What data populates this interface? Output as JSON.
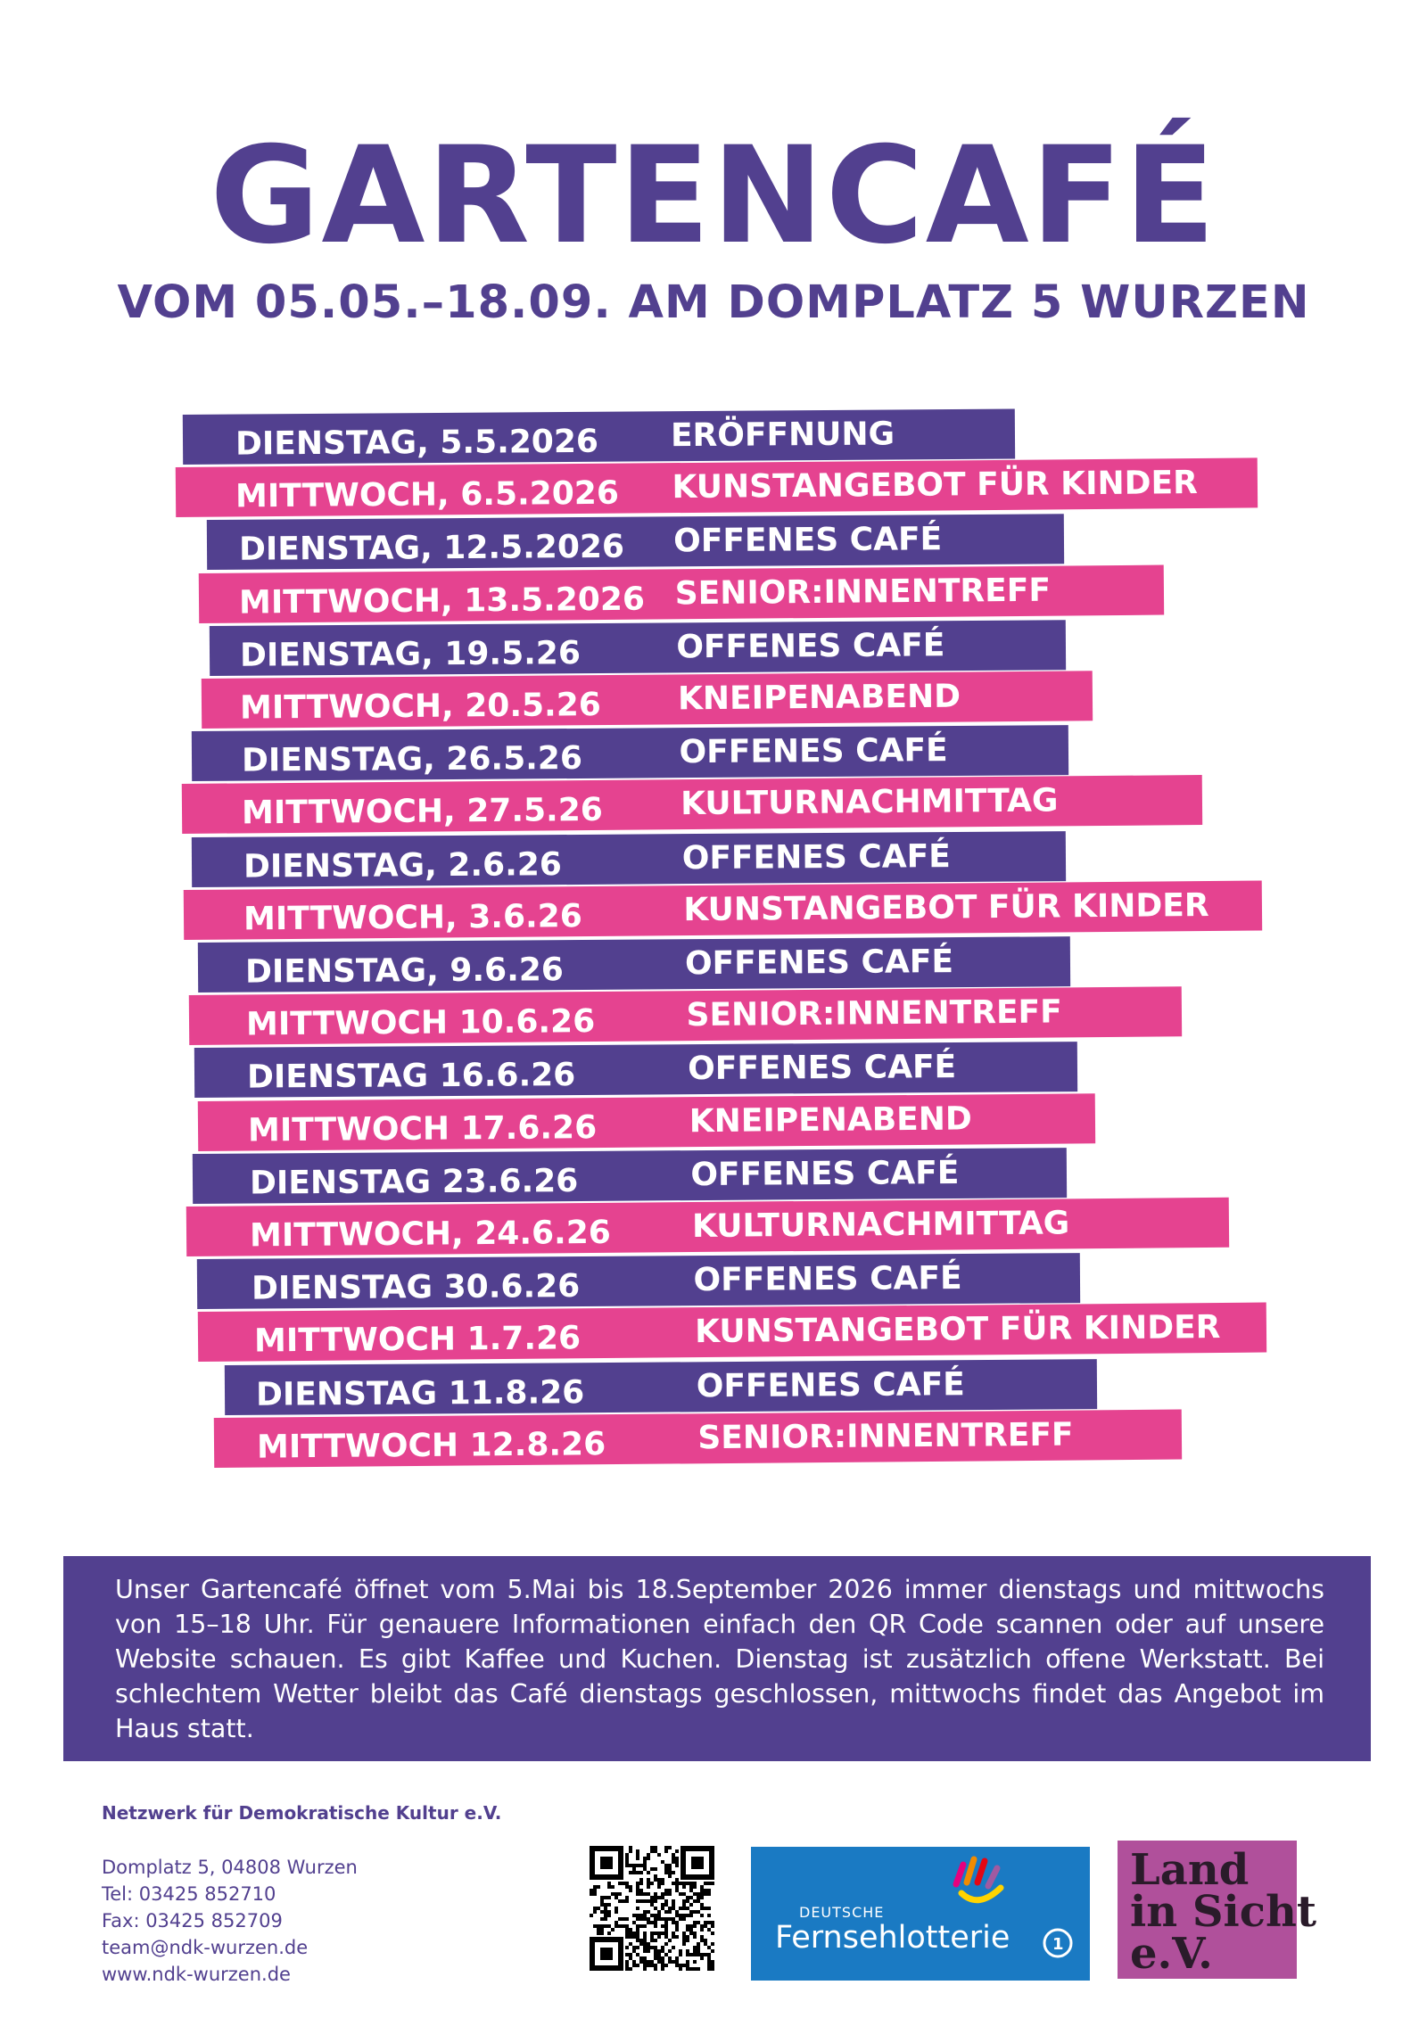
{
  "header": {
    "title": "GARTENCAFÉ",
    "subtitle": "VOM 05.05.–18.09. AM DOMPLATZ 5 WURZEN"
  },
  "schedule": [
    {
      "date": "DIENSTAG, 5.5.2026",
      "event": "ERÖFFNUNG",
      "color": "#52408f"
    },
    {
      "date": "MITTWOCH, 6.5.2026",
      "event": "KUNSTANGEBOT FÜR KINDER",
      "color": "#e54390"
    },
    {
      "date": "DIENSTAG, 12.5.2026",
      "event": "OFFENES CAFÉ",
      "color": "#52408f"
    },
    {
      "date": "MITTWOCH, 13.5.2026",
      "event": "SENIOR:INNENTREFF",
      "color": "#e54390"
    },
    {
      "date": "DIENSTAG, 19.5.26",
      "event": "OFFENES CAFÉ",
      "color": "#52408f"
    },
    {
      "date": "MITTWOCH, 20.5.26",
      "event": "KNEIPENABEND",
      "color": "#e54390"
    },
    {
      "date": "DIENSTAG, 26.5.26",
      "event": "OFFENES CAFÉ",
      "color": "#52408f"
    },
    {
      "date": "MITTWOCH, 27.5.26",
      "event": "KULTURNACHMITTAG",
      "color": "#e54390"
    },
    {
      "date": "DIENSTAG, 2.6.26",
      "event": "OFFENES CAFÉ",
      "color": "#52408f"
    },
    {
      "date": "MITTWOCH, 3.6.26",
      "event": "KUNSTANGEBOT FÜR KINDER",
      "color": "#e54390"
    },
    {
      "date": "DIENSTAG, 9.6.26",
      "event": "OFFENES CAFÉ",
      "color": "#52408f"
    },
    {
      "date": "MITTWOCH 10.6.26",
      "event": "SENIOR:INNENTREFF",
      "color": "#e54390"
    },
    {
      "date": "DIENSTAG 16.6.26",
      "event": "OFFENES CAFÉ",
      "color": "#52408f"
    },
    {
      "date": "MITTWOCH 17.6.26",
      "event": "KNEIPENABEND",
      "color": "#e54390"
    },
    {
      "date": "DIENSTAG 23.6.26",
      "event": "OFFENES CAFÉ",
      "color": "#52408f"
    },
    {
      "date": "MITTWOCH, 24.6.26",
      "event": "KULTURNACHMITTAG",
      "color": "#e54390"
    },
    {
      "date": "DIENSTAG 30.6.26",
      "event": "OFFENES CAFÉ",
      "color": "#52408f"
    },
    {
      "date": "MITTWOCH 1.7.26",
      "event": "KUNSTANGEBOT FÜR KINDER",
      "color": "#e54390"
    },
    {
      "date": "DIENSTAG 11.8.26",
      "event": "OFFENES CAFÉ",
      "color": "#52408f"
    },
    {
      "date": "MITTWOCH 12.8.26",
      "event": "SENIOR:INNENTREFF",
      "color": "#e54390"
    }
  ],
  "info": {
    "text": "Unser Gartencafé öffnet vom 5.Mai bis 18.September 2026 immer dienstags und mittwochs von 15–18 Uhr. Für genauere Informationen einfach den QR Code scannen oder auf unsere Website schauen. Es gibt Kaffee und Kuchen. Dienstag ist zusätzlich offene Werkstatt. Bei schlechtem Wetter bleibt das Café dienstags geschlossen, mittwochs findet das Angebot im Haus statt."
  },
  "footer": {
    "org_name": "Netzwerk für Demokratische Kultur e.V.",
    "address": "Domplatz 5, 04808 Wurzen",
    "tel": "Tel: 03425 852710",
    "fax": "Fax: 03425 852709",
    "email": "team@ndk-wurzen.de",
    "website": "www.ndk-wurzen.de",
    "qr_icon": "qr-code-icon",
    "sponsor1": {
      "small": "DEUTSCHE",
      "big": "Fernsehlotterie"
    },
    "sponsor2": {
      "line1": "Land",
      "line2": "in Sicht",
      "line3": "e.V."
    }
  },
  "colors": {
    "purple": "#52408f",
    "pink": "#e54390",
    "lotto_blue": "#1a7ac3",
    "land_pink": "#b0509b"
  }
}
